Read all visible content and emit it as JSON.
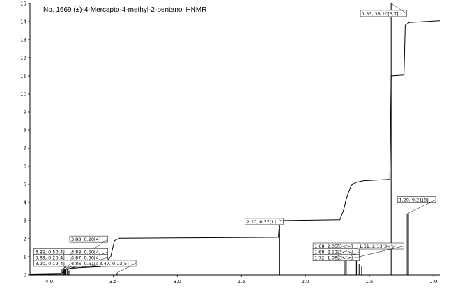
{
  "title": "No. 1669 (±)-4-Mercapto-4-methyl-2-pentanol HNMR",
  "chart_data": {
    "type": "line",
    "title": "No. 1669 (±)-4-Mercapto-4-methyl-2-pentanol HNMR",
    "xlabel": "",
    "ylabel": "",
    "xlim": [
      4.15,
      0.95
    ],
    "ylim": [
      0,
      15
    ],
    "x_ticks": [
      "4.0",
      "3.5",
      "3.0",
      "2.5",
      "2.0",
      "1.5",
      "1.0"
    ],
    "y_ticks": [
      "0",
      "1",
      "2",
      "3",
      "4",
      "5",
      "6",
      "7",
      "8",
      "9",
      "10",
      "11",
      "12",
      "13",
      "14",
      "15"
    ],
    "grid": false,
    "series": [
      {
        "role": "integral",
        "points": [
          [
            4.15,
            0.02
          ],
          [
            3.91,
            0.05
          ],
          [
            3.87,
            0.3
          ],
          [
            3.84,
            0.35
          ],
          [
            3.82,
            0.38
          ],
          [
            3.6,
            0.45
          ],
          [
            3.52,
            1.0
          ],
          [
            3.49,
            1.9
          ],
          [
            3.45,
            2.03
          ],
          [
            2.21,
            2.08
          ],
          [
            2.2,
            3.0
          ],
          [
            1.73,
            3.05
          ],
          [
            1.7,
            3.6
          ],
          [
            1.68,
            4.2
          ],
          [
            1.66,
            4.6
          ],
          [
            1.64,
            4.95
          ],
          [
            1.61,
            5.1
          ],
          [
            1.55,
            5.2
          ],
          [
            1.34,
            5.28
          ],
          [
            1.33,
            11.0
          ],
          [
            1.23,
            11.05
          ],
          [
            1.22,
            13.8
          ],
          [
            1.19,
            13.95
          ],
          [
            0.95,
            14.05
          ]
        ]
      }
    ],
    "peaks": [
      {
        "x": 3.9,
        "h": 0.3
      },
      {
        "x": 3.89,
        "h": 0.3
      },
      {
        "x": 3.885,
        "h": 0.3
      },
      {
        "x": 3.88,
        "h": 0.3
      },
      {
        "x": 3.875,
        "h": 0.3
      },
      {
        "x": 3.87,
        "h": 0.3
      },
      {
        "x": 3.86,
        "h": 0.3
      },
      {
        "x": 3.85,
        "h": 0.25
      },
      {
        "x": 3.84,
        "h": 0.25
      },
      {
        "x": 3.47,
        "h": 0.12
      },
      {
        "x": 2.2,
        "h": 3.05
      },
      {
        "x": 1.72,
        "h": 1.0
      },
      {
        "x": 1.69,
        "h": 0.85
      },
      {
        "x": 1.68,
        "h": 0.95
      },
      {
        "x": 1.61,
        "h": 0.85
      },
      {
        "x": 1.6,
        "h": 0.95
      },
      {
        "x": 1.58,
        "h": 0.6
      },
      {
        "x": 1.56,
        "h": 0.5
      },
      {
        "x": 1.33,
        "h": 15.0
      },
      {
        "x": 1.205,
        "h": 3.4
      },
      {
        "x": 1.195,
        "h": 3.4
      }
    ],
    "annotations": [
      {
        "text": "1.33, 38.20[6,7]",
        "x": 1.33,
        "y": 15.0,
        "label_x": 1.57,
        "label_y": 14.35
      },
      {
        "text": "2.20, 6.37[1]",
        "x": 2.2,
        "y": 3.05,
        "label_x": 2.47,
        "label_y": 2.85
      },
      {
        "text": "1.20, 9.21[8]",
        "x": 1.2,
        "y": 3.4,
        "label_x": 1.28,
        "label_y": 4.05
      },
      {
        "text": "1.68, 2.05[3<'>]",
        "x": 1.68,
        "y": 0.95,
        "label_x": 1.94,
        "label_y": 1.5
      },
      {
        "text": "1.68, 2.12[3<'>]",
        "x": 1.68,
        "y": 0.95,
        "label_x": 1.94,
        "label_y": 1.18
      },
      {
        "text": "1.72, 1.08[3<'>]",
        "x": 1.72,
        "y": 1.0,
        "label_x": 1.94,
        "label_y": 0.86
      },
      {
        "text": "1.61, 2.13[3<'>]",
        "x": 1.61,
        "y": 0.95,
        "label_x": 1.59,
        "label_y": 1.5
      },
      {
        "text": "3.88, 0.20[4]",
        "x": 3.88,
        "y": 0.3,
        "label_x": 3.84,
        "label_y": 1.88
      },
      {
        "text": "3.88, 0.50[4]",
        "x": 3.88,
        "y": 0.3,
        "label_x": 3.84,
        "label_y": 1.18
      },
      {
        "text": "3.87, 0.50[4]",
        "x": 3.87,
        "y": 0.3,
        "label_x": 3.84,
        "label_y": 0.86
      },
      {
        "text": "3.86, 0.51[4]",
        "x": 3.86,
        "y": 0.3,
        "label_x": 3.84,
        "label_y": 0.54
      },
      {
        "text": "3.89, 0.50[4]",
        "x": 3.89,
        "y": 0.3,
        "label_x": 4.12,
        "label_y": 1.18
      },
      {
        "text": "3.89, 0.20[4]",
        "x": 3.89,
        "y": 0.3,
        "label_x": 4.12,
        "label_y": 0.86
      },
      {
        "text": "3.90, 0.19[4]",
        "x": 3.9,
        "y": 0.3,
        "label_x": 4.12,
        "label_y": 0.54
      },
      {
        "text": "3.47, 0.13[5]",
        "x": 3.47,
        "y": 0.12,
        "label_x": 3.62,
        "label_y": 0.54
      }
    ]
  }
}
